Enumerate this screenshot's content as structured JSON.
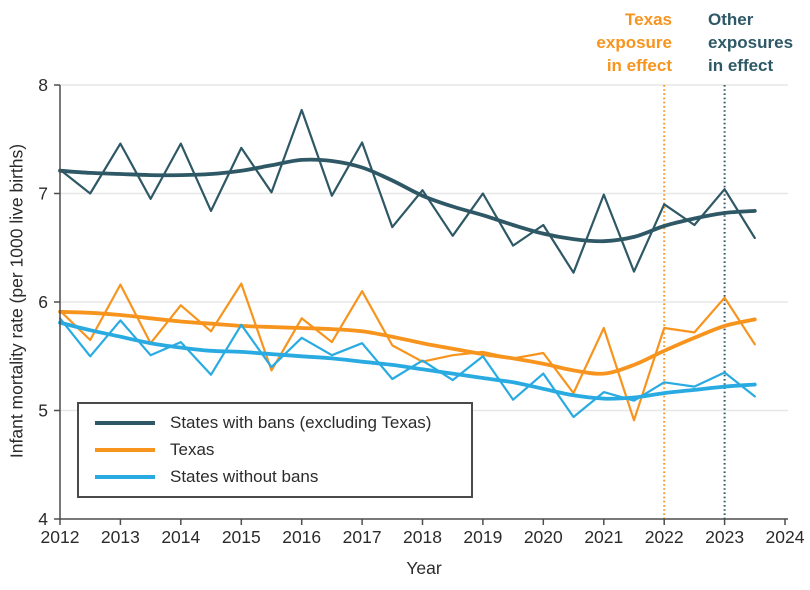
{
  "chart_data": {
    "type": "line",
    "title": "",
    "xlabel": "Year",
    "ylabel": "Infant mortality rate (per 1000 live births)",
    "xlim": [
      2012,
      2024
    ],
    "ylim": [
      4,
      8
    ],
    "x_ticks": [
      2012,
      2013,
      2014,
      2015,
      2016,
      2017,
      2018,
      2019,
      2020,
      2021,
      2022,
      2023,
      2024
    ],
    "y_ticks": [
      4,
      5,
      6,
      7,
      8
    ],
    "gridlines": [
      5,
      6,
      7,
      8
    ],
    "grid": true,
    "legend_position": "lower-left",
    "x": [
      2012,
      2012.5,
      2013,
      2013.5,
      2014,
      2014.5,
      2015,
      2015.5,
      2016,
      2016.5,
      2017,
      2017.5,
      2018,
      2018.5,
      2019,
      2019.5,
      2020,
      2020.5,
      2021,
      2021.5,
      2022,
      2022.5,
      2023,
      2023.5
    ],
    "series": [
      {
        "name": "States with bans (excluding Texas)",
        "color": "#2E5866",
        "values": [
          7.22,
          7.0,
          7.46,
          6.95,
          7.46,
          6.84,
          7.42,
          7.01,
          7.77,
          6.98,
          7.47,
          6.69,
          7.03,
          6.61,
          7.0,
          6.52,
          6.71,
          6.27,
          6.99,
          6.28,
          6.9,
          6.71,
          7.04,
          6.59
        ],
        "trend": [
          7.21,
          7.19,
          7.18,
          7.17,
          7.17,
          7.18,
          7.21,
          7.26,
          7.31,
          7.3,
          7.24,
          7.12,
          6.98,
          6.88,
          6.8,
          6.71,
          6.63,
          6.58,
          6.56,
          6.6,
          6.7,
          6.77,
          6.82,
          6.84
        ]
      },
      {
        "name": "Texas",
        "color": "#F7941E",
        "values": [
          5.92,
          5.65,
          6.16,
          5.62,
          5.97,
          5.73,
          6.17,
          5.37,
          5.85,
          5.63,
          6.1,
          5.6,
          5.45,
          5.51,
          5.54,
          5.48,
          5.53,
          5.16,
          5.76,
          4.91,
          5.76,
          5.72,
          6.04,
          5.61
        ],
        "trend": [
          5.91,
          5.9,
          5.88,
          5.85,
          5.82,
          5.8,
          5.78,
          5.77,
          5.76,
          5.75,
          5.73,
          5.68,
          5.62,
          5.57,
          5.52,
          5.48,
          5.43,
          5.37,
          5.34,
          5.42,
          5.55,
          5.67,
          5.78,
          5.84
        ]
      },
      {
        "name": "States without bans",
        "color": "#29ABE2",
        "values": [
          5.85,
          5.5,
          5.83,
          5.51,
          5.63,
          5.33,
          5.79,
          5.4,
          5.67,
          5.51,
          5.62,
          5.29,
          5.46,
          5.28,
          5.5,
          5.1,
          5.34,
          4.94,
          5.17,
          5.09,
          5.26,
          5.22,
          5.35,
          5.13
        ],
        "trend": [
          5.81,
          5.74,
          5.68,
          5.62,
          5.58,
          5.55,
          5.54,
          5.52,
          5.5,
          5.48,
          5.45,
          5.42,
          5.38,
          5.34,
          5.3,
          5.26,
          5.2,
          5.14,
          5.11,
          5.12,
          5.16,
          5.19,
          5.22,
          5.24
        ]
      }
    ],
    "events": [
      {
        "x": 2022,
        "label": "Texas\nexposure\nin effect",
        "color": "#F7941E"
      },
      {
        "x": 2023,
        "label": "Other\nexposures\nin effect",
        "color": "#2E5866"
      }
    ]
  }
}
